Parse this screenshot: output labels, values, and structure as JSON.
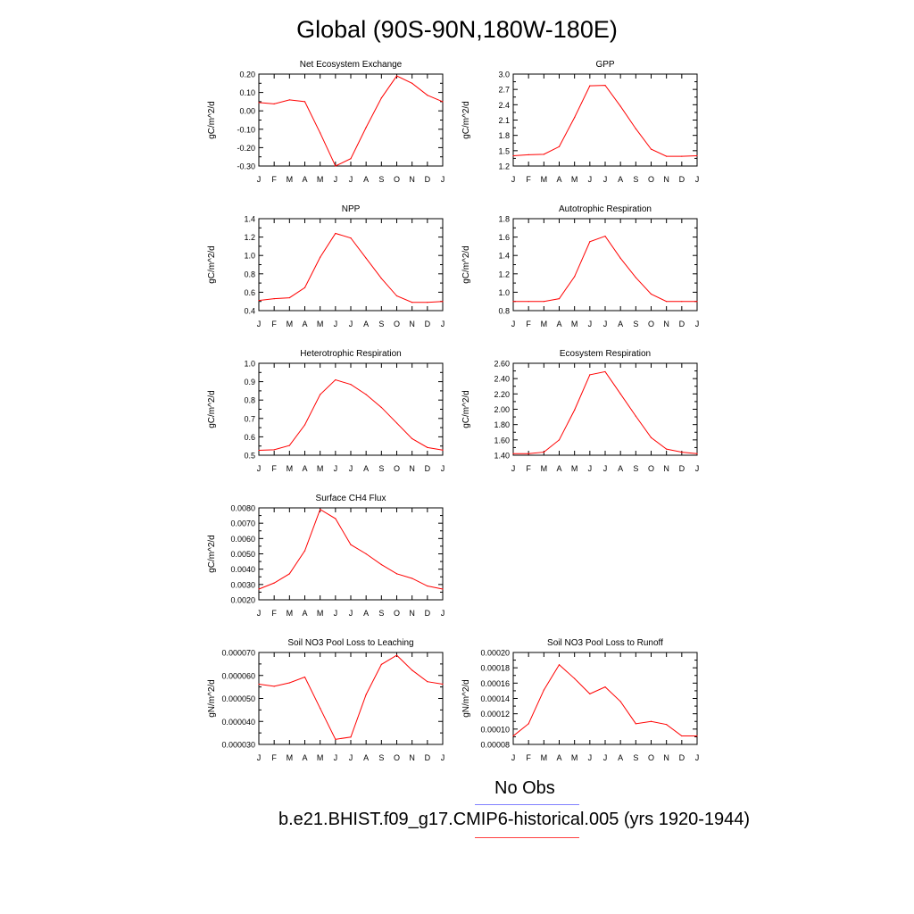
{
  "page": {
    "title": "Global (90S-90N,180W-180E)"
  },
  "legend": [
    {
      "label": "No Obs",
      "color": "#8080ff"
    },
    {
      "label": "b.e21.BHIST.f09_g17.CMIP6-historical.005 (yrs 1920-1944)",
      "color": "#ff4040"
    }
  ],
  "chart_data": [
    {
      "type": "line",
      "title": "Net Ecosystem Exchange",
      "ylabel": "gC/m^2/d",
      "xlabel": "",
      "categories": [
        "J",
        "F",
        "M",
        "A",
        "M",
        "J",
        "J",
        "A",
        "S",
        "O",
        "N",
        "D",
        "J"
      ],
      "series": [
        {
          "color": "#ff0000",
          "values": [
            0.045,
            0.038,
            0.06,
            0.05,
            -0.12,
            -0.3,
            -0.26,
            -0.09,
            0.07,
            0.19,
            0.15,
            0.085,
            0.05
          ]
        }
      ],
      "ylim": [
        -0.3,
        0.2
      ],
      "yticks": [
        0.2,
        0.1,
        0.0,
        -0.1,
        -0.2,
        -0.3
      ],
      "ytick_labels": [
        "0.20",
        "0.10",
        "0.00",
        "-0.10",
        "-0.20",
        "-0.30"
      ],
      "grid": false
    },
    {
      "type": "line",
      "title": "GPP",
      "ylabel": "gC/m^2/d",
      "xlabel": "",
      "categories": [
        "J",
        "F",
        "M",
        "A",
        "M",
        "J",
        "J",
        "A",
        "S",
        "O",
        "N",
        "D",
        "J"
      ],
      "series": [
        {
          "color": "#ff0000",
          "values": [
            1.4,
            1.42,
            1.43,
            1.58,
            2.15,
            2.77,
            2.78,
            2.37,
            1.93,
            1.53,
            1.39,
            1.39,
            1.4
          ]
        }
      ],
      "ylim": [
        1.2,
        3.0
      ],
      "yticks": [
        3.0,
        2.7,
        2.4,
        2.1,
        1.8,
        1.5,
        1.2
      ],
      "ytick_labels": [
        "3.0",
        "2.7",
        "2.4",
        "2.1",
        "1.8",
        "1.5",
        "1.2"
      ],
      "grid": false
    },
    {
      "type": "line",
      "title": "NPP",
      "ylabel": "gC/m^2/d",
      "xlabel": "",
      "categories": [
        "J",
        "F",
        "M",
        "A",
        "M",
        "J",
        "J",
        "A",
        "S",
        "O",
        "N",
        "D",
        "J"
      ],
      "series": [
        {
          "color": "#ff0000",
          "values": [
            0.51,
            0.53,
            0.54,
            0.65,
            0.98,
            1.24,
            1.19,
            0.97,
            0.75,
            0.56,
            0.49,
            0.49,
            0.5
          ]
        }
      ],
      "ylim": [
        0.4,
        1.4
      ],
      "yticks": [
        1.4,
        1.2,
        1.0,
        0.8,
        0.6,
        0.4
      ],
      "ytick_labels": [
        "1.4",
        "1.2",
        "1.0",
        "0.8",
        "0.6",
        "0.4"
      ],
      "grid": false
    },
    {
      "type": "line",
      "title": "Autotrophic Respiration",
      "ylabel": "gC/m^2/d",
      "xlabel": "",
      "categories": [
        "J",
        "F",
        "M",
        "A",
        "M",
        "J",
        "J",
        "A",
        "S",
        "O",
        "N",
        "D",
        "J"
      ],
      "series": [
        {
          "color": "#ff0000",
          "values": [
            0.9,
            0.9,
            0.9,
            0.93,
            1.17,
            1.55,
            1.61,
            1.37,
            1.16,
            0.98,
            0.9,
            0.9,
            0.9
          ]
        }
      ],
      "ylim": [
        0.8,
        1.8
      ],
      "yticks": [
        1.8,
        1.6,
        1.4,
        1.2,
        1.0,
        0.8
      ],
      "ytick_labels": [
        "1.8",
        "1.6",
        "1.4",
        "1.2",
        "1.0",
        "0.8"
      ],
      "grid": false
    },
    {
      "type": "line",
      "title": "Heterotrophic Respiration",
      "ylabel": "gC/m^2/d",
      "xlabel": "",
      "categories": [
        "J",
        "F",
        "M",
        "A",
        "M",
        "J",
        "J",
        "A",
        "S",
        "O",
        "N",
        "D",
        "J"
      ],
      "series": [
        {
          "color": "#ff0000",
          "values": [
            0.527,
            0.53,
            0.553,
            0.665,
            0.83,
            0.91,
            0.885,
            0.83,
            0.76,
            0.675,
            0.59,
            0.542,
            0.528
          ]
        }
      ],
      "ylim": [
        0.5,
        1.0
      ],
      "yticks": [
        1.0,
        0.9,
        0.8,
        0.7,
        0.6,
        0.5
      ],
      "ytick_labels": [
        "1.0",
        "0.9",
        "0.8",
        "0.7",
        "0.6",
        "0.5"
      ],
      "grid": false
    },
    {
      "type": "line",
      "title": "Ecosystem Respiration",
      "ylabel": "gC/m^2/d",
      "xlabel": "",
      "categories": [
        "J",
        "F",
        "M",
        "A",
        "M",
        "J",
        "J",
        "A",
        "S",
        "O",
        "N",
        "D",
        "J"
      ],
      "series": [
        {
          "color": "#ff0000",
          "values": [
            1.42,
            1.42,
            1.44,
            1.6,
            1.99,
            2.45,
            2.49,
            2.2,
            1.91,
            1.63,
            1.48,
            1.44,
            1.42
          ]
        }
      ],
      "ylim": [
        1.4,
        2.6
      ],
      "yticks": [
        2.6,
        2.4,
        2.2,
        2.0,
        1.8,
        1.6,
        1.4
      ],
      "ytick_labels": [
        "2.60",
        "2.40",
        "2.20",
        "2.00",
        "1.80",
        "1.60",
        "1.40"
      ],
      "grid": false
    },
    {
      "type": "line",
      "title": "Surface CH4 Flux",
      "ylabel": "gC/m^2/d",
      "xlabel": "",
      "categories": [
        "J",
        "F",
        "M",
        "A",
        "M",
        "J",
        "J",
        "A",
        "S",
        "O",
        "N",
        "D",
        "J"
      ],
      "series": [
        {
          "color": "#ff0000",
          "values": [
            0.0027,
            0.0031,
            0.0037,
            0.0052,
            0.0079,
            0.0073,
            0.0056,
            0.005,
            0.0043,
            0.0037,
            0.0034,
            0.0029,
            0.0027
          ]
        }
      ],
      "ylim": [
        0.002,
        0.008
      ],
      "yticks": [
        0.008,
        0.007,
        0.006,
        0.005,
        0.004,
        0.003,
        0.002
      ],
      "ytick_labels": [
        "0.0080",
        "0.0070",
        "0.0060",
        "0.0050",
        "0.0040",
        "0.0030",
        "0.0020"
      ],
      "grid": false
    },
    {
      "type": "line",
      "title": "Soil NO3 Pool Loss to Leaching",
      "ylabel": "gN/m^2/d",
      "xlabel": "",
      "categories": [
        "J",
        "F",
        "M",
        "A",
        "M",
        "J",
        "J",
        "A",
        "S",
        "O",
        "N",
        "D",
        "J"
      ],
      "series": [
        {
          "color": "#ff0000",
          "values": [
            5.62e-05,
            5.53e-05,
            5.68e-05,
            5.93e-05,
            4.57e-05,
            3.22e-05,
            3.32e-05,
            5.17e-05,
            6.48e-05,
            6.88e-05,
            6.23e-05,
            5.73e-05,
            5.62e-05
          ]
        }
      ],
      "ylim": [
        3e-05,
        7e-05
      ],
      "yticks": [
        7e-05,
        6e-05,
        5e-05,
        4e-05,
        3e-05
      ],
      "ytick_labels": [
        "0.000070",
        "0.000060",
        "0.000050",
        "0.000040",
        "0.000030"
      ],
      "grid": false
    },
    {
      "type": "line",
      "title": "Soil NO3 Pool Loss to Runoff",
      "ylabel": "gN/m^2/d",
      "xlabel": "",
      "categories": [
        "J",
        "F",
        "M",
        "A",
        "M",
        "J",
        "J",
        "A",
        "S",
        "O",
        "N",
        "D",
        "J"
      ],
      "series": [
        {
          "color": "#ff0000",
          "values": [
            9.1e-05,
            0.000107,
            0.000151,
            0.000184,
            0.000166,
            0.000146,
            0.000155,
            0.000136,
            0.000107,
            0.00011,
            0.000106,
            9.1e-05,
            9.1e-05
          ]
        }
      ],
      "ylim": [
        8e-05,
        0.0002
      ],
      "yticks": [
        0.0002,
        0.00018,
        0.00016,
        0.00014,
        0.00012,
        0.0001,
        8e-05
      ],
      "ytick_labels": [
        "0.00020",
        "0.00018",
        "0.00016",
        "0.00014",
        "0.00012",
        "0.00010",
        "0.00008"
      ],
      "grid": false
    }
  ]
}
